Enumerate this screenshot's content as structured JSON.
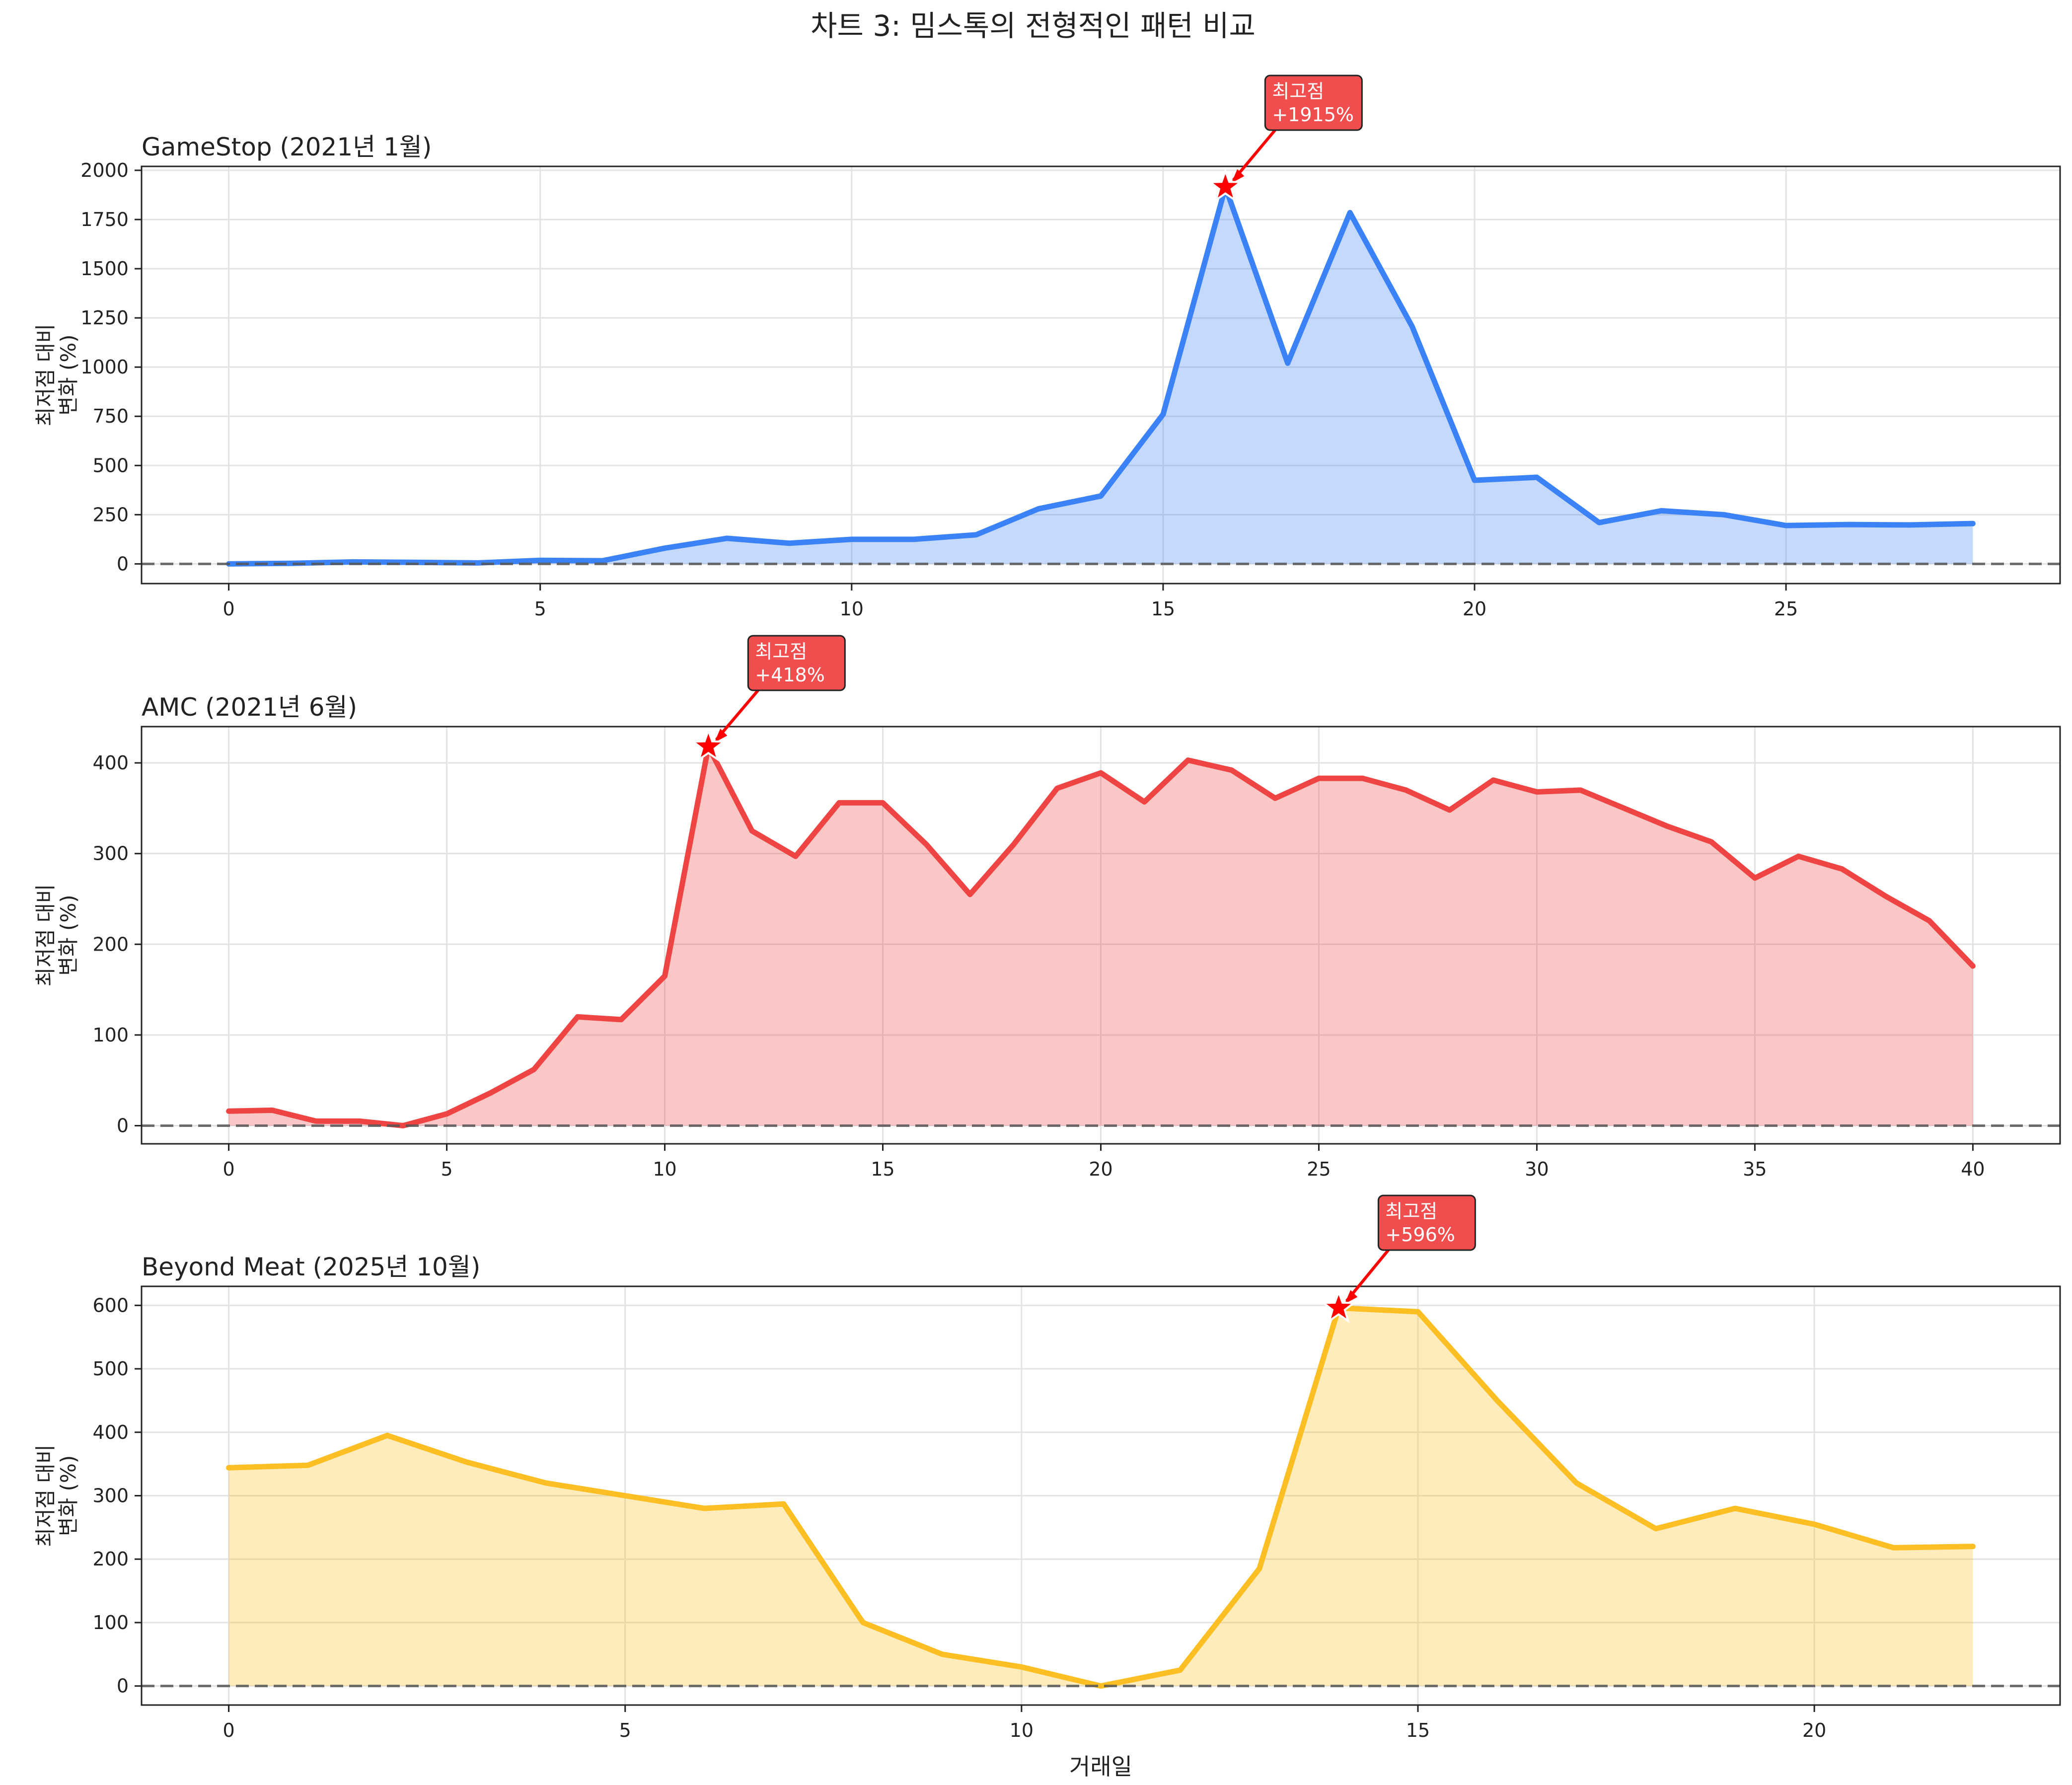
{
  "figure_title": "차트 3: 밈스톡의 전형적인 패턴 비교",
  "chart_data": [
    {
      "type": "area",
      "title": "GameStop (2021년 1월)",
      "xlabel": "",
      "ylabel": "최저점 대비\n변화 (%)",
      "color": "#3b82f6",
      "xlim": [
        -1.4,
        29.4
      ],
      "ylim": [
        -100,
        2020
      ],
      "xticks": [
        0,
        5,
        10,
        15,
        20,
        25
      ],
      "yticks": [
        0,
        250,
        500,
        750,
        1000,
        1250,
        1500,
        1750,
        2000
      ],
      "grid": true,
      "baseline": 0,
      "x": [
        0,
        1,
        2,
        3,
        4,
        5,
        6,
        7,
        8,
        9,
        10,
        11,
        12,
        13,
        14,
        15,
        16,
        17,
        18,
        19,
        20,
        21,
        22,
        23,
        24,
        25,
        26,
        27,
        28
      ],
      "values": [
        0,
        3,
        10,
        8,
        5,
        18,
        16,
        80,
        130,
        105,
        125,
        125,
        148,
        280,
        345,
        760,
        1915,
        1020,
        1785,
        1205,
        425,
        440,
        210,
        270,
        250,
        195,
        200,
        198,
        205
      ],
      "peak": {
        "x": 16,
        "y": 1915,
        "label_line1": "최고점",
        "label_line2": "+1915%"
      }
    },
    {
      "type": "area",
      "title": "AMC (2021년 6월)",
      "xlabel": "",
      "ylabel": "최저점 대비\n변화 (%)",
      "color": "#ef4444",
      "xlim": [
        -2,
        42
      ],
      "ylim": [
        -20,
        440
      ],
      "xticks": [
        0,
        5,
        10,
        15,
        20,
        25,
        30,
        35,
        40
      ],
      "yticks": [
        0,
        100,
        200,
        300,
        400
      ],
      "grid": true,
      "baseline": 0,
      "x": [
        0,
        1,
        2,
        3,
        4,
        5,
        6,
        7,
        8,
        9,
        10,
        11,
        12,
        13,
        14,
        15,
        16,
        17,
        18,
        19,
        20,
        21,
        22,
        23,
        24,
        25,
        26,
        27,
        28,
        29,
        30,
        31,
        32,
        33,
        34,
        35,
        36,
        37,
        38,
        39,
        40
      ],
      "values": [
        16,
        17,
        5,
        5,
        0,
        13,
        36,
        62,
        120,
        117,
        165,
        418,
        325,
        297,
        356,
        356,
        310,
        255,
        310,
        372,
        389,
        357,
        403,
        392,
        361,
        383,
        383,
        370,
        348,
        381,
        368,
        370,
        350,
        330,
        313,
        273,
        297,
        283,
        253,
        226,
        176
      ],
      "peak": {
        "x": 11,
        "y": 418,
        "label_line1": "최고점",
        "label_line2": "+418%"
      }
    },
    {
      "type": "area",
      "title": "Beyond Meat (2025년 10월)",
      "xlabel": "거래일",
      "ylabel": "최저점 대비\n변화 (%)",
      "color": "#fbbf24",
      "xlim": [
        -1.1,
        23.1
      ],
      "ylim": [
        -30,
        630
      ],
      "xticks": [
        0,
        5,
        10,
        15,
        20
      ],
      "yticks": [
        0,
        100,
        200,
        300,
        400,
        500,
        600
      ],
      "grid": true,
      "baseline": 0,
      "x": [
        0,
        1,
        2,
        3,
        4,
        5,
        6,
        7,
        8,
        9,
        10,
        11,
        12,
        13,
        14,
        15,
        16,
        17,
        18,
        19,
        20,
        21,
        22
      ],
      "values": [
        344,
        348,
        395,
        353,
        320,
        300,
        280,
        287,
        100,
        50,
        30,
        0,
        25,
        185,
        596,
        590,
        450,
        320,
        248,
        280,
        255,
        218,
        220
      ],
      "peak": {
        "x": 14,
        "y": 596,
        "label_line1": "최고점",
        "label_line2": "+596%"
      }
    }
  ]
}
